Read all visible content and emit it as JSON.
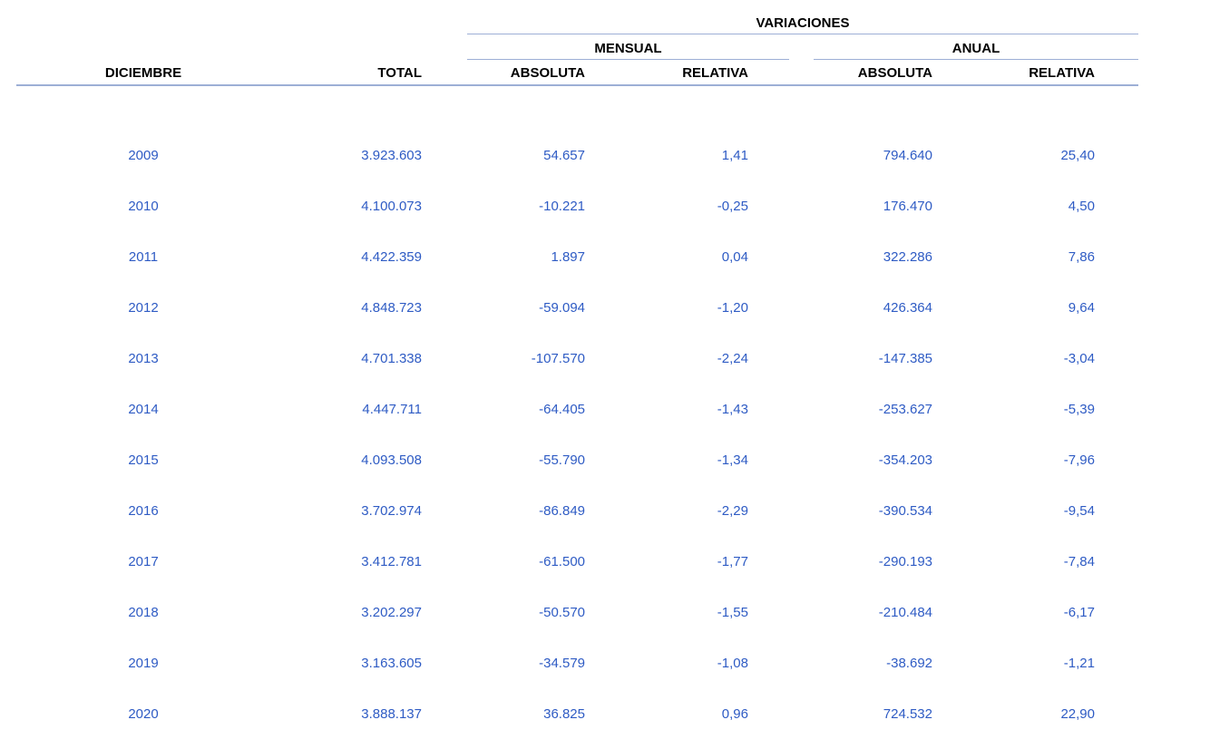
{
  "table": {
    "group_header": "VARIACIONES",
    "subgroups": {
      "mensual": "MENSUAL",
      "anual": "ANUAL"
    },
    "columns": [
      "DICIEMBRE",
      "TOTAL",
      "ABSOLUTA",
      "RELATIVA",
      "ABSOLUTA",
      "RELATIVA"
    ],
    "rows": [
      {
        "year": "2009",
        "total": "3.923.603",
        "mensual_absoluta": "54.657",
        "mensual_relativa": "1,41",
        "anual_absoluta": "794.640",
        "anual_relativa": "25,40"
      },
      {
        "year": "2010",
        "total": "4.100.073",
        "mensual_absoluta": "-10.221",
        "mensual_relativa": "-0,25",
        "anual_absoluta": "176.470",
        "anual_relativa": "4,50"
      },
      {
        "year": "2011",
        "total": "4.422.359",
        "mensual_absoluta": "1.897",
        "mensual_relativa": "0,04",
        "anual_absoluta": "322.286",
        "anual_relativa": "7,86"
      },
      {
        "year": "2012",
        "total": "4.848.723",
        "mensual_absoluta": "-59.094",
        "mensual_relativa": "-1,20",
        "anual_absoluta": "426.364",
        "anual_relativa": "9,64"
      },
      {
        "year": "2013",
        "total": "4.701.338",
        "mensual_absoluta": "-107.570",
        "mensual_relativa": "-2,24",
        "anual_absoluta": "-147.385",
        "anual_relativa": "-3,04"
      },
      {
        "year": "2014",
        "total": "4.447.711",
        "mensual_absoluta": "-64.405",
        "mensual_relativa": "-1,43",
        "anual_absoluta": "-253.627",
        "anual_relativa": "-5,39"
      },
      {
        "year": "2015",
        "total": "4.093.508",
        "mensual_absoluta": "-55.790",
        "mensual_relativa": "-1,34",
        "anual_absoluta": "-354.203",
        "anual_relativa": "-7,96"
      },
      {
        "year": "2016",
        "total": "3.702.974",
        "mensual_absoluta": "-86.849",
        "mensual_relativa": "-2,29",
        "anual_absoluta": "-390.534",
        "anual_relativa": "-9,54"
      },
      {
        "year": "2017",
        "total": "3.412.781",
        "mensual_absoluta": "-61.500",
        "mensual_relativa": "-1,77",
        "anual_absoluta": "-290.193",
        "anual_relativa": "-7,84"
      },
      {
        "year": "2018",
        "total": "3.202.297",
        "mensual_absoluta": "-50.570",
        "mensual_relativa": "-1,55",
        "anual_absoluta": "-210.484",
        "anual_relativa": "-6,17"
      },
      {
        "year": "2019",
        "total": "3.163.605",
        "mensual_absoluta": "-34.579",
        "mensual_relativa": "-1,08",
        "anual_absoluta": "-38.692",
        "anual_relativa": "-1,21"
      },
      {
        "year": "2020",
        "total": "3.888.137",
        "mensual_absoluta": "36.825",
        "mensual_relativa": "0,96",
        "anual_absoluta": "724.532",
        "anual_relativa": "22,90"
      }
    ]
  },
  "colors": {
    "data_text": "#2e5bc4",
    "header_text": "#000000",
    "line": "#9dafd6"
  }
}
